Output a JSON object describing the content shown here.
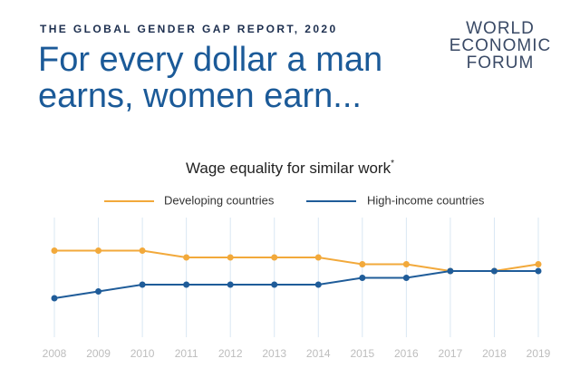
{
  "header": {
    "kicker": "THE GLOBAL GENDER GAP REPORT, 2020",
    "headline": [
      "For every dollar a man",
      "earns, women earn..."
    ],
    "logo": [
      "WORLD",
      "ECONOMIC",
      "FORUM"
    ]
  },
  "chart_data": {
    "type": "line",
    "title": "Wage equality for similar work",
    "title_note": "*",
    "categories": [
      "2008",
      "2009",
      "2010",
      "2011",
      "2012",
      "2013",
      "2014",
      "2015",
      "2016",
      "2017",
      "2018",
      "2019"
    ],
    "series": [
      {
        "name": "Developing countries",
        "color": "#f2a93b",
        "values": [
          0.69,
          0.69,
          0.69,
          0.68,
          0.68,
          0.68,
          0.68,
          0.67,
          0.67,
          0.66,
          0.66,
          0.67
        ]
      },
      {
        "name": "High-income countries",
        "color": "#1f5c99",
        "values": [
          0.62,
          0.63,
          0.64,
          0.64,
          0.64,
          0.64,
          0.64,
          0.65,
          0.65,
          0.66,
          0.66,
          0.66
        ]
      }
    ],
    "ylim": [
      0.56,
      0.74
    ],
    "grid": true
  }
}
